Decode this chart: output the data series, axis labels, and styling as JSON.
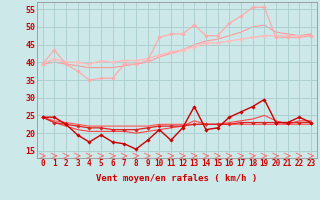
{
  "background_color": "#cce8e8",
  "grid_color": "#aacccc",
  "xlabel": "Vent moyen/en rafales ( km/h )",
  "xlabel_color": "#cc0000",
  "xlabel_fontsize": 6.5,
  "xtick_fontsize": 5.5,
  "ytick_fontsize": 6.0,
  "ylim": [
    13,
    57
  ],
  "yticks": [
    15,
    20,
    25,
    30,
    35,
    40,
    45,
    50,
    55
  ],
  "x": [
    0,
    1,
    2,
    3,
    4,
    5,
    6,
    7,
    8,
    9,
    10,
    11,
    12,
    13,
    14,
    15,
    16,
    17,
    18,
    19,
    20,
    21,
    22,
    23
  ],
  "series": [
    {
      "y": [
        39.5,
        43.5,
        39.5,
        37.5,
        35.0,
        35.5,
        35.5,
        39.5,
        39.5,
        40.5,
        47.0,
        48.0,
        48.0,
        50.5,
        47.5,
        47.5,
        51.0,
        53.0,
        55.5,
        55.5,
        47.0,
        47.0,
        47.0,
        47.5
      ],
      "color": "#ffaaaa",
      "lw": 0.9,
      "marker": "D",
      "ms": 1.8,
      "zorder": 3
    },
    {
      "y": [
        39.5,
        41.0,
        40.0,
        40.0,
        39.5,
        40.5,
        40.0,
        40.5,
        40.5,
        41.0,
        42.0,
        43.0,
        43.5,
        44.5,
        45.5,
        45.5,
        46.0,
        46.5,
        47.0,
        47.5,
        47.5,
        47.5,
        47.5,
        47.5
      ],
      "color": "#ffbbbb",
      "lw": 0.9,
      "marker": "D",
      "ms": 1.8,
      "zorder": 2
    },
    {
      "y": [
        39.5,
        40.5,
        40.0,
        40.0,
        39.5,
        40.0,
        40.0,
        40.5,
        40.5,
        41.0,
        42.0,
        42.5,
        43.0,
        44.0,
        45.0,
        45.5,
        46.0,
        46.5,
        47.0,
        47.5,
        47.5,
        47.5,
        47.5,
        47.5
      ],
      "color": "#ffcccc",
      "lw": 0.8,
      "marker": null,
      "ms": 0,
      "zorder": 1
    },
    {
      "y": [
        39.5,
        40.0,
        39.5,
        39.0,
        38.5,
        38.5,
        38.5,
        39.0,
        39.5,
        40.0,
        41.5,
        42.5,
        43.5,
        45.0,
        46.0,
        46.5,
        47.5,
        48.5,
        50.0,
        50.5,
        48.5,
        48.0,
        47.5,
        48.0
      ],
      "color": "#ff9999",
      "lw": 0.8,
      "marker": null,
      "ms": 0,
      "zorder": 1
    },
    {
      "y": [
        24.5,
        24.5,
        22.5,
        19.5,
        17.5,
        19.5,
        17.5,
        17.0,
        15.5,
        18.0,
        21.0,
        18.0,
        21.5,
        27.5,
        21.0,
        21.5,
        24.5,
        26.0,
        27.5,
        29.5,
        23.0,
        23.0,
        24.5,
        23.0
      ],
      "color": "#cc0000",
      "lw": 1.0,
      "marker": "D",
      "ms": 1.8,
      "zorder": 5
    },
    {
      "y": [
        24.5,
        23.0,
        22.5,
        22.0,
        21.5,
        21.5,
        21.0,
        21.0,
        21.0,
        21.5,
        22.0,
        22.0,
        22.0,
        22.5,
        22.5,
        22.5,
        22.5,
        23.0,
        23.0,
        23.0,
        23.0,
        23.0,
        23.0,
        23.0
      ],
      "color": "#dd2222",
      "lw": 0.9,
      "marker": "D",
      "ms": 1.8,
      "zorder": 4
    },
    {
      "y": [
        24.5,
        23.5,
        23.0,
        22.5,
        22.0,
        22.0,
        22.0,
        22.0,
        22.0,
        22.0,
        22.5,
        22.5,
        22.5,
        22.5,
        22.5,
        22.5,
        22.5,
        22.5,
        22.5,
        22.5,
        22.5,
        22.5,
        22.5,
        22.5
      ],
      "color": "#ff5555",
      "lw": 0.8,
      "marker": null,
      "ms": 0,
      "zorder": 2
    },
    {
      "y": [
        24.5,
        23.0,
        22.0,
        21.0,
        20.5,
        20.5,
        20.5,
        20.5,
        20.0,
        20.5,
        21.0,
        21.5,
        22.0,
        23.5,
        22.5,
        22.5,
        23.0,
        23.5,
        24.0,
        25.0,
        23.5,
        22.5,
        23.5,
        23.5
      ],
      "color": "#ff4444",
      "lw": 0.8,
      "marker": null,
      "ms": 0,
      "zorder": 2
    }
  ],
  "wind_arrow_color": "#ff6666"
}
